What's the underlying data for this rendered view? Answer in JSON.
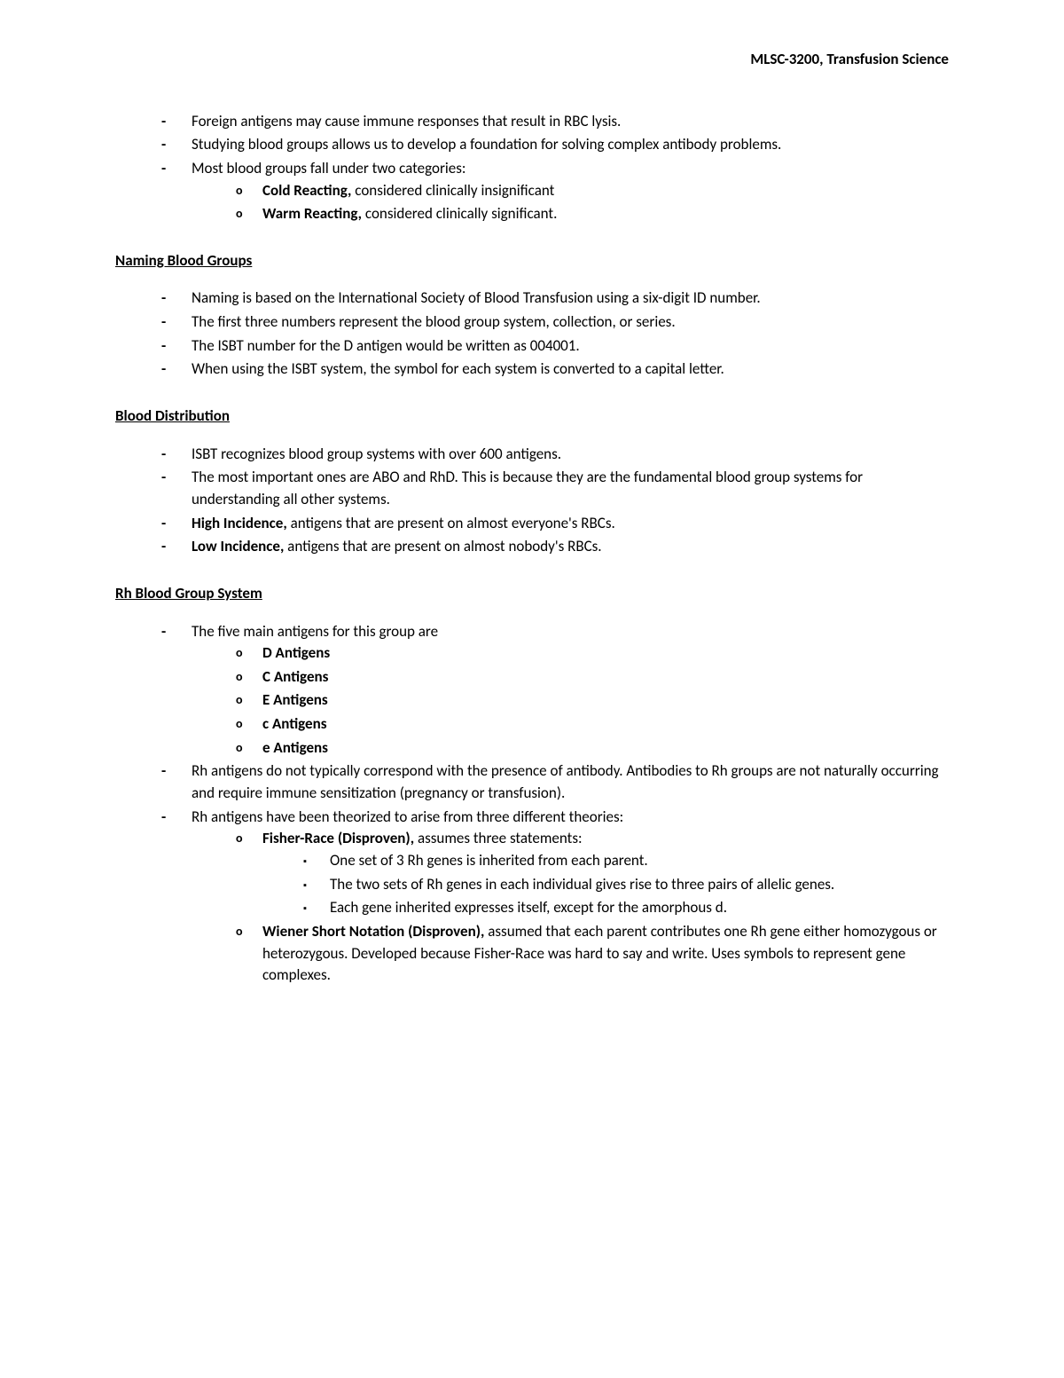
{
  "header": "MLSC-3200, Transfusion Science",
  "intro": {
    "items": [
      "Foreign antigens may cause immune responses that result in RBC lysis.",
      "Studying blood groups allows us to develop a foundation for solving complex antibody problems.",
      "Most blood groups fall under two categories:"
    ],
    "sub_cold_bold": "Cold Reacting,",
    "sub_cold_rest": " considered clinically insignificant",
    "sub_warm_bold": "Warm Reacting,",
    "sub_warm_rest": " considered clinically significant."
  },
  "naming": {
    "heading": "Naming Blood Groups",
    "items": [
      "Naming is based on the International Society of Blood Transfusion using a six-digit ID number.",
      "The first three numbers represent the blood group system, collection, or series.",
      "The ISBT number for the D antigen would be written as 004001.",
      "When using the ISBT system, the symbol for each system is converted to a capital letter."
    ]
  },
  "distribution": {
    "heading": "Blood Distribution",
    "item1": "ISBT recognizes blood group systems with over 600 antigens.",
    "item2": "The most important ones are ABO and RhD. This is because they are the fundamental blood group systems for understanding all other systems.",
    "item3_bold": "High Incidence,",
    "item3_rest": " antigens that are present on almost everyone's RBCs.",
    "item4_bold": "Low Incidence,",
    "item4_rest": " antigens that are present on almost nobody's RBCs."
  },
  "rh": {
    "heading": "Rh Blood Group System",
    "item1": "The five main antigens for this group are",
    "antigens": [
      "D Antigens",
      "C Antigens",
      "E Antigens",
      "c Antigens",
      "e Antigens"
    ],
    "item2": "Rh antigens do not typically correspond with the presence of antibody. Antibodies to Rh groups are not naturally occurring and require immune sensitization (pregnancy or transfusion).",
    "item3": "Rh antigens have been theorized to arise from three different theories:",
    "fisher_bold": "Fisher-Race (Disproven),",
    "fisher_rest": " assumes three statements:",
    "fisher_sub": [
      "One set of 3 Rh genes is inherited from each parent.",
      "The two sets of Rh genes in each individual gives rise to three pairs of allelic genes.",
      "Each gene inherited expresses itself, except for the amorphous d."
    ],
    "wiener_bold": "Wiener Short Notation (Disproven),",
    "wiener_rest": " assumed that each parent contributes one Rh gene either homozygous or heterozygous. Developed because Fisher-Race was hard to say and write. Uses symbols to represent gene complexes."
  }
}
